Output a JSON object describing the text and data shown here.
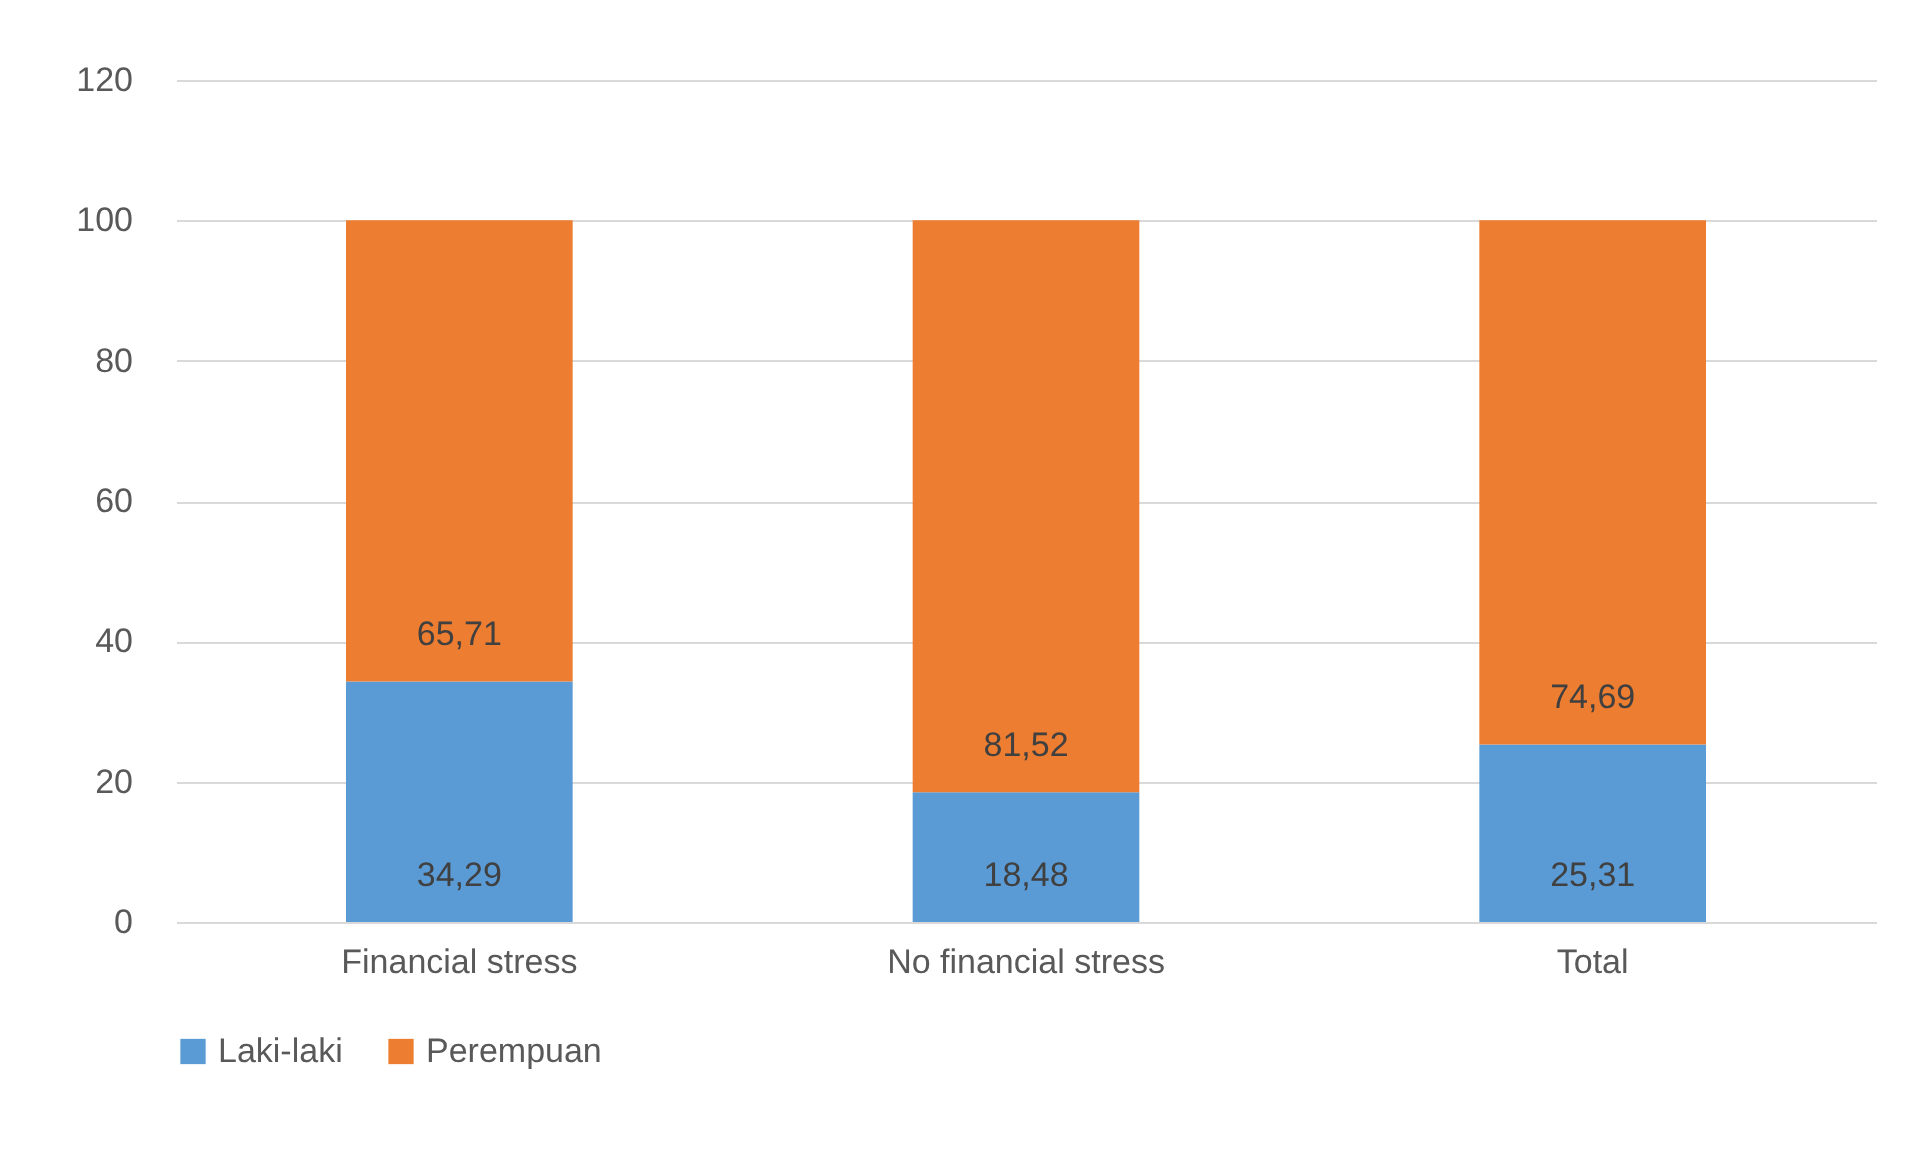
{
  "chart_data": {
    "type": "bar",
    "stacked": true,
    "categories": [
      "Financial stress",
      "No financial stress",
      "Total"
    ],
    "series": [
      {
        "name": "Laki-laki",
        "color": "#5b9bd5",
        "values": [
          34.29,
          18.48,
          25.31
        ],
        "value_labels": [
          "34,29",
          "18,48",
          "25,31"
        ]
      },
      {
        "name": "Perempuan",
        "color": "#ed7d31",
        "values": [
          65.71,
          81.52,
          74.69
        ],
        "value_labels": [
          "65,71",
          "81,52",
          "74,69"
        ]
      }
    ],
    "ylim": [
      0,
      120
    ],
    "yticks": [
      0,
      20,
      40,
      60,
      80,
      100,
      120
    ],
    "grid": "y",
    "legend": "bottom"
  }
}
